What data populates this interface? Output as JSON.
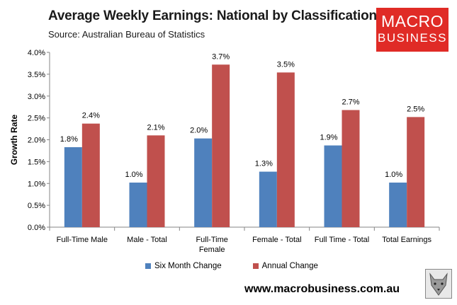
{
  "header": {
    "title": "Average Weekly Earnings: National by Classification",
    "subtitle": "Source: Australian Bureau of Statistics"
  },
  "logo": {
    "line1": "MACRO",
    "line2": "BUSINESS",
    "color": "#e02b26",
    "wolf_icon": "wolf-head-icon"
  },
  "footer": {
    "website": "www.macrobusiness.com.au"
  },
  "chart_data": {
    "type": "bar",
    "title": "Average Weekly Earnings: National by Classification",
    "subtitle": "Source: Australian Bureau of Statistics",
    "ylabel": "Growth Rate",
    "xlabel": "",
    "ylim": [
      0,
      4.0
    ],
    "yticks": [
      "0.0%",
      "0.5%",
      "1.0%",
      "1.5%",
      "2.0%",
      "2.5%",
      "3.0%",
      "3.5%",
      "4.0%"
    ],
    "categories": [
      [
        "Full-Time Male"
      ],
      [
        "Male - Total"
      ],
      [
        "Full-Time",
        "Female"
      ],
      [
        "Female - Total"
      ],
      [
        "Full Time - Total"
      ],
      [
        "Total Earnings"
      ]
    ],
    "series": [
      {
        "name": "Six Month Change",
        "color": "#4f81bd",
        "values": [
          1.83,
          1.02,
          2.03,
          1.27,
          1.87,
          1.02
        ],
        "labels": [
          "1.8%",
          "1.0%",
          "2.0%",
          "1.3%",
          "1.9%",
          "1.0%"
        ]
      },
      {
        "name": "Annual Change",
        "color": "#c0504d",
        "values": [
          2.37,
          2.1,
          3.72,
          3.54,
          2.68,
          2.52
        ],
        "labels": [
          "2.4%",
          "2.1%",
          "3.7%",
          "3.5%",
          "2.7%",
          "2.5%"
        ]
      }
    ],
    "legend_position": "bottom",
    "grid": false
  }
}
